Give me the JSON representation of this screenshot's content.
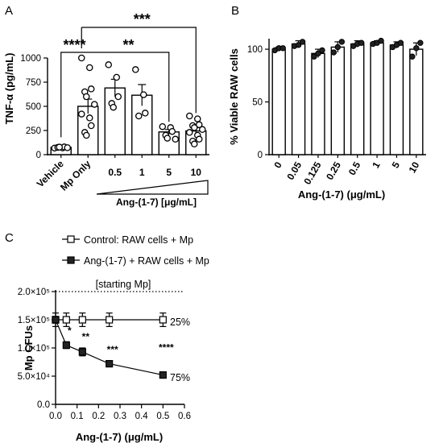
{
  "chart_data": [
    {
      "panel": "A",
      "type": "bar",
      "ylabel": "TNF-α (pg/mL)",
      "categories": [
        "Vehicle",
        "Mp Only",
        "0.5",
        "1",
        "5",
        "10"
      ],
      "values": [
        75,
        500,
        690,
        615,
        235,
        245
      ],
      "sem": [
        10,
        75,
        90,
        110,
        25,
        35
      ],
      "points": [
        [
          68,
          70,
          80,
          75,
          78,
          72
        ],
        [
          1000,
          900,
          680,
          650,
          600,
          520,
          420,
          380,
          300,
          230,
          200
        ],
        [
          930,
          800,
          600,
          530,
          490
        ],
        [
          880,
          620,
          430,
          400
        ],
        [
          290,
          280,
          240,
          200,
          170,
          160
        ],
        [
          400,
          370,
          310,
          300,
          280,
          260,
          230,
          200,
          160,
          140,
          110
        ]
      ],
      "ylim": [
        0,
        1000
      ],
      "yticks": [
        0,
        250,
        500,
        750,
        1000
      ],
      "xgroup_label": "Ang-(1-7) [μg/mL]",
      "significance": [
        "****",
        "**",
        "***"
      ]
    },
    {
      "panel": "B",
      "type": "bar",
      "ylabel": "% Viable RAW cells",
      "xlabel": "Ang-(1-7) (μg/mL)",
      "categories": [
        "0",
        "0.05",
        "0.125",
        "0.25",
        "0.5",
        "1",
        "5",
        "10"
      ],
      "values": [
        100,
        105,
        96,
        102,
        105,
        106,
        104,
        100
      ],
      "sem": [
        2,
        3,
        4,
        5,
        3,
        2,
        3,
        6
      ],
      "points": [
        [
          99,
          101,
          101
        ],
        [
          103,
          104,
          107
        ],
        [
          93,
          96,
          99
        ],
        [
          97,
          102,
          107
        ],
        [
          103,
          105,
          106
        ],
        [
          105,
          106,
          108
        ],
        [
          102,
          104,
          106
        ],
        [
          93,
          101,
          106
        ]
      ],
      "ylim": [
        0,
        110
      ],
      "yticks": [
        0,
        50,
        100
      ]
    },
    {
      "panel": "C",
      "type": "line",
      "ylabel": "Mp CFUs",
      "xlabel": "Ang-(1-7) (μg/mL)",
      "xlim": [
        0,
        0.6
      ],
      "xticks": [
        "0.0",
        "0.1",
        "0.2",
        "0.3",
        "0.4",
        "0.5",
        "0.6"
      ],
      "ylim": [
        0,
        200000
      ],
      "yticks": [
        "0.0",
        "5.0×10⁴",
        "1.0×10⁵",
        "1.5×10⁵",
        "2.0×10⁵"
      ],
      "reference_line": {
        "y": 200000,
        "label": "[starting Mp]"
      },
      "series": [
        {
          "name": "Control: RAW cells + Mp",
          "marker": "open-square",
          "x": [
            0,
            0.05,
            0.125,
            0.25,
            0.5
          ],
          "y": [
            150000,
            150000,
            150000,
            150000,
            150000
          ],
          "err": [
            12000,
            12000,
            12000,
            12000,
            12000
          ],
          "end_label": "25%"
        },
        {
          "name": "Ang-(1-7) + RAW cells + Mp",
          "marker": "filled-square",
          "x": [
            0,
            0.05,
            0.125,
            0.25,
            0.5
          ],
          "y": [
            150000,
            105000,
            93000,
            72000,
            52000
          ],
          "err": [
            6000,
            6000,
            7000,
            5000,
            5000
          ],
          "end_label": "75%"
        }
      ],
      "significance": [
        {
          "x": 0.05,
          "label": "*"
        },
        {
          "x": 0.125,
          "label": "**"
        },
        {
          "x": 0.25,
          "label": "***"
        },
        {
          "x": 0.5,
          "label": "****"
        }
      ]
    }
  ]
}
